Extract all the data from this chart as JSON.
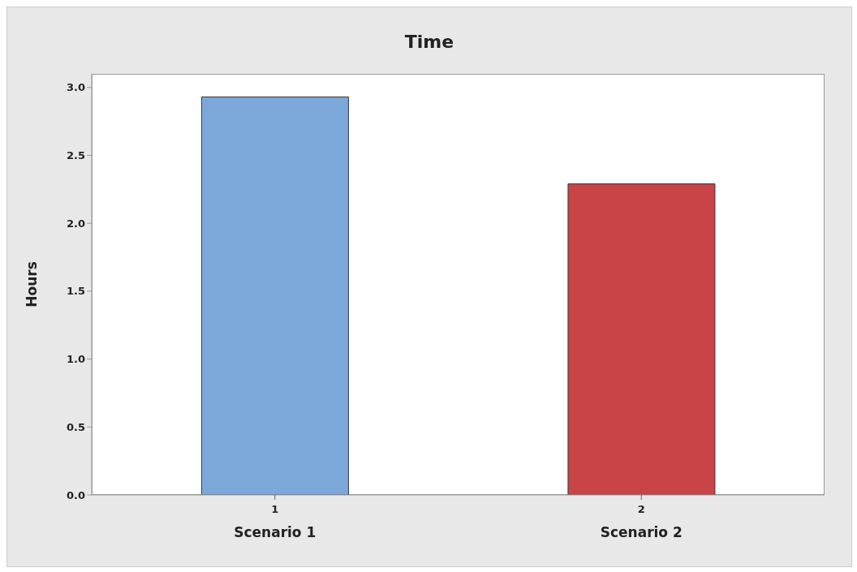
{
  "chart_data": {
    "type": "bar",
    "title": "Time",
    "ylabel": "Hours",
    "categories": [
      "1",
      "2"
    ],
    "values": [
      2.93,
      2.29
    ],
    "colors": [
      "#7ba7d9",
      "#c84446"
    ],
    "ylim": [
      0,
      3.1
    ],
    "yticks": [
      {
        "value": 0,
        "label": "0.0"
      },
      0.5,
      {
        "value": 1,
        "label": "1.0"
      },
      1.5,
      {
        "value": 2,
        "label": "2.0"
      },
      2.5,
      {
        "value": 3,
        "label": "3.0"
      }
    ],
    "annotations": [
      "Scenario 1",
      "Scenario 2"
    ]
  }
}
